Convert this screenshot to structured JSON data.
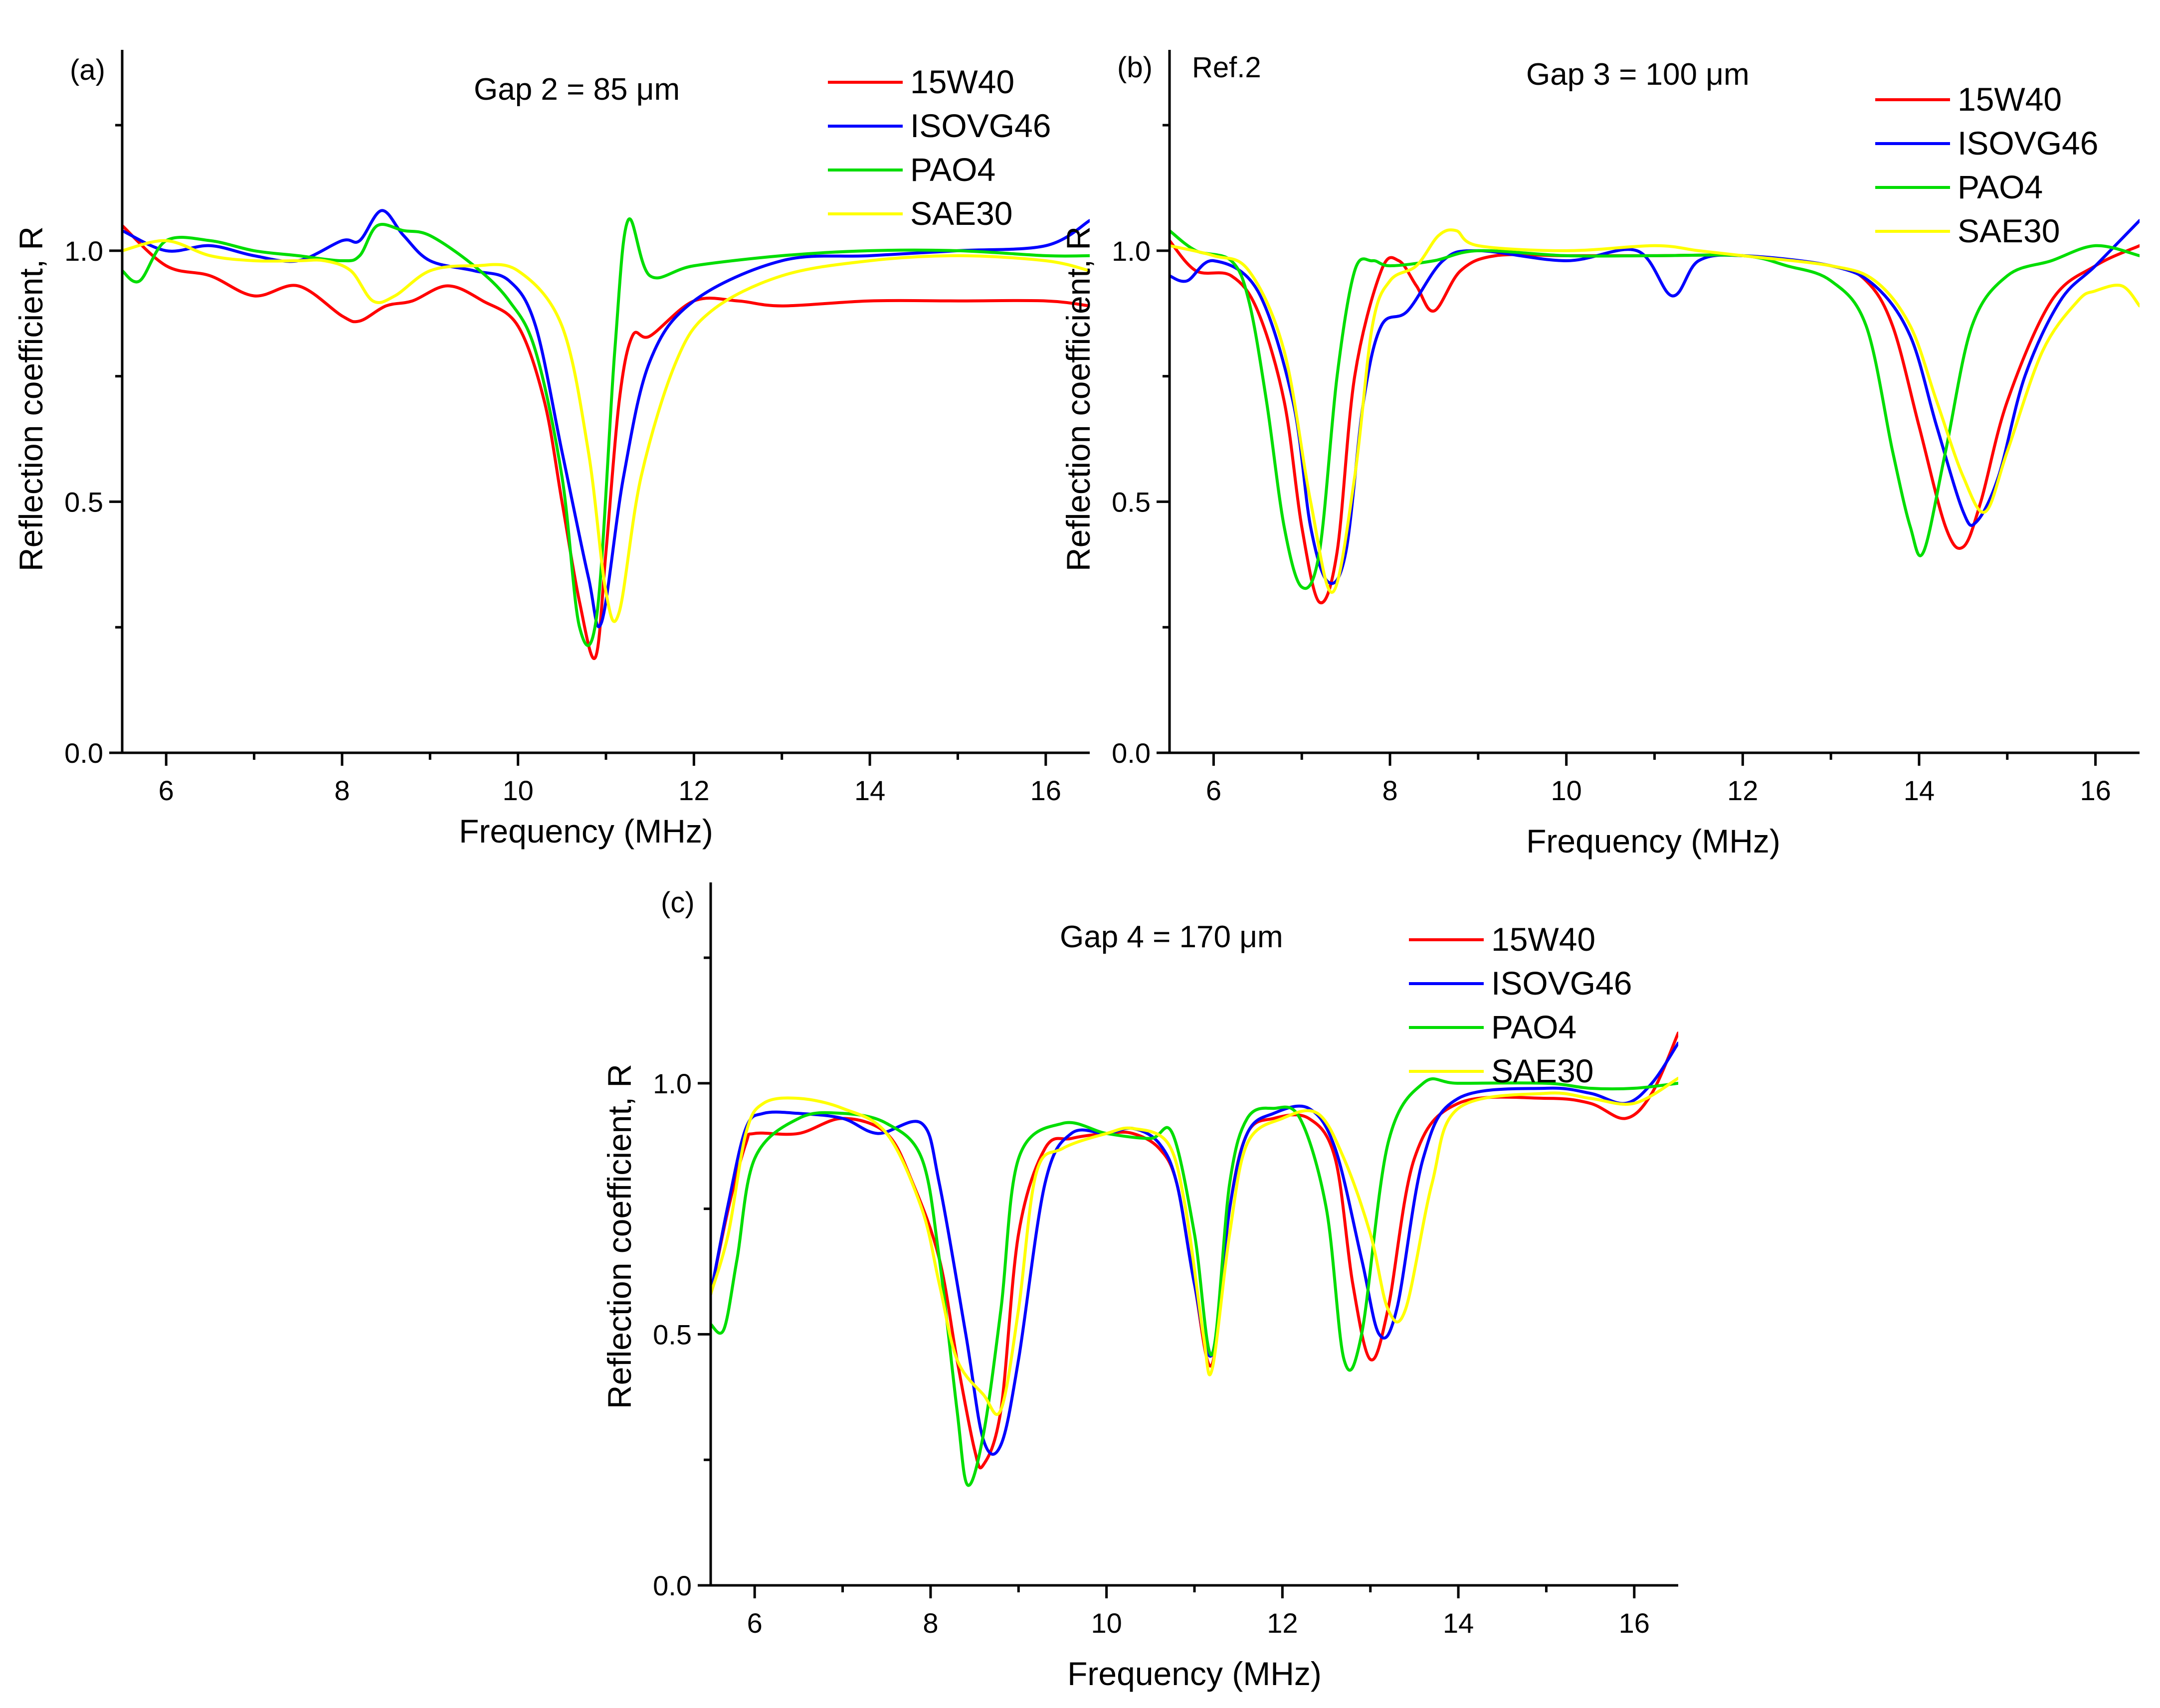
{
  "chart_data": [
    {
      "type": "line",
      "panel_label": "(a)",
      "annotation": "Gap 2 = 85 μm",
      "xlabel": "Frequency (MHz)",
      "ylabel": "Reflection coefficient, R",
      "xlim": [
        5.5,
        16.5
      ],
      "ylim": [
        0,
        1.4
      ],
      "xticks": [
        6,
        8,
        10,
        12,
        14,
        16
      ],
      "yticks": [
        0.0,
        0.5,
        1.0
      ],
      "ytick_labels": [
        "0.0",
        "0.5",
        "1.0"
      ],
      "legend_position": "top-right",
      "series": [
        {
          "name": "15W40",
          "color": "#ff0000",
          "x": [
            5.5,
            6.0,
            6.5,
            7.0,
            7.5,
            8.0,
            8.2,
            8.5,
            8.8,
            9.2,
            9.6,
            10.0,
            10.3,
            10.5,
            10.7,
            10.88,
            11.0,
            11.15,
            11.3,
            11.5,
            12.0,
            12.5,
            13,
            14,
            15,
            16,
            16.5
          ],
          "y": [
            1.05,
            0.97,
            0.95,
            0.91,
            0.93,
            0.87,
            0.86,
            0.89,
            0.9,
            0.93,
            0.9,
            0.85,
            0.7,
            0.5,
            0.3,
            0.19,
            0.4,
            0.7,
            0.83,
            0.83,
            0.9,
            0.9,
            0.89,
            0.9,
            0.9,
            0.9,
            0.89
          ]
        },
        {
          "name": "ISOVG46",
          "color": "#0000ff",
          "x": [
            5.5,
            6.0,
            6.5,
            7.0,
            7.5,
            8.0,
            8.2,
            8.45,
            8.7,
            9.0,
            9.5,
            9.9,
            10.2,
            10.5,
            10.8,
            10.95,
            11.2,
            11.5,
            12.0,
            13,
            14,
            15,
            16,
            16.5
          ],
          "y": [
            1.04,
            1.0,
            1.01,
            0.99,
            0.98,
            1.02,
            1.02,
            1.08,
            1.03,
            0.98,
            0.96,
            0.94,
            0.85,
            0.6,
            0.35,
            0.26,
            0.55,
            0.78,
            0.9,
            0.98,
            0.99,
            1.0,
            1.01,
            1.06
          ]
        },
        {
          "name": "PAO4",
          "color": "#00dd00",
          "x": [
            5.5,
            5.7,
            6.0,
            6.5,
            7.0,
            7.5,
            8.0,
            8.2,
            8.4,
            8.7,
            9.0,
            9.5,
            9.9,
            10.2,
            10.5,
            10.7,
            10.9,
            11.1,
            11.25,
            11.5,
            12,
            13,
            14,
            15,
            16,
            16.5
          ],
          "y": [
            0.96,
            0.94,
            1.02,
            1.02,
            1.0,
            0.99,
            0.98,
            0.99,
            1.05,
            1.04,
            1.03,
            0.97,
            0.9,
            0.8,
            0.55,
            0.25,
            0.28,
            0.8,
            1.06,
            0.95,
            0.97,
            0.99,
            1.0,
            1.0,
            0.99,
            0.99
          ]
        },
        {
          "name": "SAE30",
          "color": "#ffff00",
          "x": [
            5.5,
            6.0,
            6.5,
            7.0,
            7.5,
            7.8,
            8.1,
            8.35,
            8.6,
            9.0,
            9.5,
            10.0,
            10.5,
            10.8,
            11.0,
            11.15,
            11.4,
            11.8,
            12.2,
            13,
            14,
            15,
            16,
            16.5
          ],
          "y": [
            1.0,
            1.02,
            0.99,
            0.98,
            0.98,
            0.98,
            0.96,
            0.9,
            0.91,
            0.96,
            0.97,
            0.96,
            0.85,
            0.6,
            0.32,
            0.28,
            0.55,
            0.78,
            0.88,
            0.95,
            0.98,
            0.99,
            0.98,
            0.96
          ]
        }
      ],
      "legend": [
        "15W40",
        "ISOVG46",
        "PAO4",
        "SAE30"
      ]
    },
    {
      "type": "line",
      "panel_label": "(b)",
      "corner_note": "Ref.2",
      "annotation": "Gap 3 = 100 μm",
      "xlabel": "Frequency (MHz)",
      "ylabel": "Reflection coefficient, R",
      "xlim": [
        5.5,
        16.5
      ],
      "ylim": [
        0,
        1.4
      ],
      "xticks": [
        6,
        8,
        10,
        12,
        14,
        16
      ],
      "yticks": [
        0.0,
        0.5,
        1.0
      ],
      "ytick_labels": [
        "0.0",
        "0.5",
        "1.0"
      ],
      "legend_position": "top-right",
      "series": [
        {
          "name": "15W40",
          "color": "#ff0000",
          "x": [
            5.5,
            5.8,
            6.2,
            6.5,
            6.8,
            7.0,
            7.2,
            7.4,
            7.6,
            7.9,
            8.1,
            8.3,
            8.5,
            8.8,
            9.2,
            10,
            11,
            12,
            13,
            13.4,
            13.7,
            14.0,
            14.3,
            14.5,
            14.7,
            15.0,
            15.5,
            16,
            16.5
          ],
          "y": [
            1.02,
            0.96,
            0.95,
            0.88,
            0.7,
            0.45,
            0.3,
            0.4,
            0.75,
            0.96,
            0.98,
            0.93,
            0.88,
            0.96,
            0.99,
            0.99,
            0.99,
            0.99,
            0.97,
            0.94,
            0.85,
            0.65,
            0.45,
            0.41,
            0.5,
            0.7,
            0.9,
            0.97,
            1.01
          ]
        },
        {
          "name": "ISOVG46",
          "color": "#0000ff",
          "x": [
            5.5,
            5.7,
            6.0,
            6.5,
            6.9,
            7.1,
            7.3,
            7.5,
            7.7,
            7.9,
            8.2,
            8.6,
            9.0,
            10.0,
            10.8,
            11.2,
            11.5,
            12,
            13,
            13.5,
            13.9,
            14.2,
            14.5,
            14.65,
            14.9,
            15.2,
            15.6,
            16,
            16.5
          ],
          "y": [
            0.95,
            0.94,
            0.98,
            0.92,
            0.7,
            0.45,
            0.34,
            0.4,
            0.7,
            0.85,
            0.88,
            0.98,
            1.0,
            0.98,
            1.0,
            0.91,
            0.98,
            0.99,
            0.97,
            0.93,
            0.83,
            0.65,
            0.48,
            0.46,
            0.55,
            0.75,
            0.9,
            0.97,
            1.06
          ]
        },
        {
          "name": "PAO4",
          "color": "#00dd00",
          "x": [
            5.5,
            5.8,
            6.2,
            6.4,
            6.6,
            6.8,
            7.0,
            7.2,
            7.4,
            7.6,
            7.8,
            8.0,
            8.5,
            9.0,
            10,
            11,
            12,
            12.5,
            13,
            13.4,
            13.7,
            13.9,
            14.05,
            14.3,
            14.6,
            15.0,
            15.5,
            16,
            16.5
          ],
          "y": [
            1.04,
            1.0,
            0.98,
            0.9,
            0.7,
            0.45,
            0.33,
            0.4,
            0.75,
            0.96,
            0.98,
            0.97,
            0.98,
            1.0,
            0.99,
            0.99,
            0.99,
            0.97,
            0.94,
            0.85,
            0.6,
            0.45,
            0.4,
            0.6,
            0.85,
            0.95,
            0.98,
            1.01,
            0.99
          ]
        },
        {
          "name": "SAE30",
          "color": "#ffff00",
          "x": [
            5.5,
            6.0,
            6.4,
            6.8,
            7.1,
            7.35,
            7.6,
            7.8,
            8.0,
            8.3,
            8.55,
            8.75,
            9.0,
            10,
            11,
            11.5,
            12,
            13,
            13.5,
            13.9,
            14.2,
            14.5,
            14.75,
            15.0,
            15.4,
            15.8,
            16.0,
            16.3,
            16.5
          ],
          "y": [
            1.01,
            0.99,
            0.96,
            0.8,
            0.5,
            0.32,
            0.55,
            0.85,
            0.94,
            0.97,
            1.03,
            1.04,
            1.01,
            1.0,
            1.01,
            1.0,
            0.99,
            0.97,
            0.94,
            0.85,
            0.7,
            0.55,
            0.48,
            0.6,
            0.8,
            0.9,
            0.92,
            0.93,
            0.89
          ]
        }
      ],
      "legend": [
        "15W40",
        "ISOVG46",
        "PAO4",
        "SAE30"
      ]
    },
    {
      "type": "line",
      "panel_label": "(c)",
      "annotation": "Gap 4 = 170 μm",
      "xlabel": "Frequency (MHz)",
      "ylabel": "Reflection coefficient, R",
      "xlim": [
        5.5,
        16.5
      ],
      "ylim": [
        0,
        1.4
      ],
      "xticks": [
        6,
        8,
        10,
        12,
        14,
        16
      ],
      "yticks": [
        0.0,
        0.5,
        1.0
      ],
      "ytick_labels": [
        "0.0",
        "0.5",
        "1.0"
      ],
      "legend_position": "top-right",
      "series": [
        {
          "name": "15W40",
          "color": "#ff0000",
          "x": [
            5.5,
            5.7,
            5.9,
            6.0,
            6.5,
            7.0,
            7.5,
            7.8,
            8.1,
            8.3,
            8.5,
            8.6,
            8.8,
            9.0,
            9.3,
            9.6,
            10.0,
            10.3,
            10.6,
            10.8,
            11.0,
            11.2,
            11.4,
            11.6,
            11.9,
            12.3,
            12.6,
            12.8,
            13.0,
            13.2,
            13.5,
            14.0,
            15.0,
            15.5,
            15.9,
            16.2,
            16.5
          ],
          "y": [
            0.58,
            0.75,
            0.88,
            0.9,
            0.9,
            0.93,
            0.9,
            0.8,
            0.65,
            0.45,
            0.27,
            0.24,
            0.35,
            0.7,
            0.87,
            0.89,
            0.9,
            0.9,
            0.87,
            0.8,
            0.6,
            0.44,
            0.75,
            0.9,
            0.93,
            0.93,
            0.85,
            0.6,
            0.45,
            0.55,
            0.85,
            0.96,
            0.97,
            0.96,
            0.93,
            0.98,
            1.1
          ]
        },
        {
          "name": "ISOVG46",
          "color": "#0000ff",
          "x": [
            5.5,
            5.7,
            5.9,
            6.1,
            6.5,
            7.0,
            7.4,
            7.9,
            8.1,
            8.4,
            8.6,
            8.8,
            9.0,
            9.3,
            9.6,
            10.0,
            10.3,
            10.6,
            10.8,
            11.0,
            11.2,
            11.4,
            11.6,
            11.9,
            12.3,
            12.6,
            12.9,
            13.1,
            13.3,
            13.6,
            14.0,
            15.0,
            15.5,
            15.9,
            16.2,
            16.5
          ],
          "y": [
            0.58,
            0.76,
            0.91,
            0.94,
            0.94,
            0.93,
            0.9,
            0.92,
            0.8,
            0.5,
            0.29,
            0.28,
            0.45,
            0.8,
            0.9,
            0.9,
            0.91,
            0.88,
            0.8,
            0.6,
            0.46,
            0.75,
            0.9,
            0.94,
            0.95,
            0.87,
            0.65,
            0.5,
            0.55,
            0.85,
            0.97,
            0.99,
            0.98,
            0.96,
            1.0,
            1.08
          ]
        },
        {
          "name": "PAO4",
          "color": "#00dd00",
          "x": [
            5.5,
            5.65,
            5.8,
            6.0,
            6.5,
            7.0,
            7.5,
            7.9,
            8.1,
            8.3,
            8.42,
            8.6,
            8.8,
            9.0,
            9.5,
            10.0,
            10.5,
            10.75,
            11.0,
            11.2,
            11.4,
            11.6,
            11.9,
            12.2,
            12.5,
            12.7,
            12.9,
            13.2,
            13.6,
            14.0,
            15.0,
            15.5,
            16.0,
            16.5
          ],
          "y": [
            0.52,
            0.51,
            0.65,
            0.85,
            0.93,
            0.94,
            0.92,
            0.85,
            0.65,
            0.35,
            0.2,
            0.3,
            0.55,
            0.85,
            0.92,
            0.9,
            0.89,
            0.9,
            0.7,
            0.46,
            0.8,
            0.93,
            0.95,
            0.93,
            0.75,
            0.45,
            0.5,
            0.88,
            1.0,
            1.0,
            1.0,
            0.99,
            0.99,
            1.0
          ]
        },
        {
          "name": "SAE30",
          "color": "#ffff00",
          "x": [
            5.5,
            5.7,
            5.9,
            6.1,
            6.5,
            7.0,
            7.5,
            7.9,
            8.1,
            8.3,
            8.6,
            8.8,
            9.0,
            9.2,
            9.5,
            10.0,
            10.3,
            10.7,
            10.9,
            11.1,
            11.2,
            11.4,
            11.6,
            12.0,
            12.4,
            12.7,
            13.0,
            13.2,
            13.4,
            13.7,
            14.0,
            15.0,
            15.5,
            16.0,
            16.5
          ],
          "y": [
            0.58,
            0.7,
            0.9,
            0.96,
            0.97,
            0.95,
            0.9,
            0.75,
            0.6,
            0.45,
            0.38,
            0.35,
            0.55,
            0.82,
            0.87,
            0.9,
            0.91,
            0.88,
            0.75,
            0.5,
            0.43,
            0.7,
            0.88,
            0.93,
            0.94,
            0.85,
            0.7,
            0.55,
            0.55,
            0.8,
            0.95,
            0.98,
            0.97,
            0.96,
            1.01
          ]
        }
      ],
      "legend": [
        "15W40",
        "ISOVG46",
        "PAO4",
        "SAE30"
      ]
    }
  ]
}
